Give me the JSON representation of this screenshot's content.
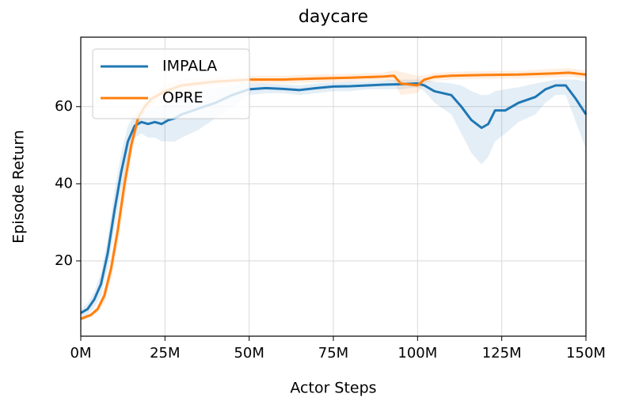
{
  "chart_data": {
    "type": "line",
    "title": "daycare",
    "xlabel": "Actor Steps",
    "ylabel": "Episode Return",
    "xlim": [
      0,
      150
    ],
    "ylim": [
      0.5,
      78
    ],
    "xticks": [
      {
        "value": 0,
        "label": "0M"
      },
      {
        "value": 25,
        "label": "25M"
      },
      {
        "value": 50,
        "label": "50M"
      },
      {
        "value": 75,
        "label": "75M"
      },
      {
        "value": 100,
        "label": "100M"
      },
      {
        "value": 125,
        "label": "125M"
      },
      {
        "value": 150,
        "label": "150M"
      }
    ],
    "yticks": [
      20,
      40,
      60
    ],
    "grid": true,
    "legend": "upper left",
    "series": [
      {
        "name": "IMPALA",
        "color": "#1f77b4",
        "x": [
          0,
          2,
          4,
          6,
          8,
          10,
          12,
          14,
          16,
          18,
          20,
          22,
          24,
          26,
          28,
          30,
          35,
          40,
          45,
          50,
          55,
          60,
          65,
          70,
          75,
          80,
          85,
          90,
          95,
          100,
          102,
          105,
          110,
          113,
          116,
          119,
          121,
          123,
          126,
          130,
          135,
          138,
          141,
          144,
          147,
          150
        ],
        "values": [
          6.5,
          7.5,
          10,
          14,
          22,
          33,
          43,
          51,
          55,
          56,
          55.5,
          56,
          55.5,
          56.5,
          57,
          58,
          59.5,
          61,
          63,
          64.5,
          64.8,
          64.6,
          64.3,
          64.8,
          65.2,
          65.3,
          65.5,
          65.7,
          65.8,
          66,
          65.5,
          64,
          63,
          60,
          56.5,
          54.5,
          55.5,
          59,
          59,
          61,
          62.5,
          64.5,
          65.5,
          65.5,
          62,
          58
        ],
        "lower": [
          5.5,
          6,
          8,
          11,
          18,
          28,
          38,
          47,
          52,
          53,
          52,
          52,
          51,
          51,
          51,
          52,
          54,
          57,
          60,
          63,
          63.5,
          63.5,
          63,
          63.5,
          64,
          64,
          64.5,
          64.5,
          64.5,
          65,
          64,
          61,
          58,
          53,
          48,
          45,
          47,
          51,
          53,
          56,
          58,
          61,
          63,
          63,
          56,
          49
        ],
        "upper": [
          7.5,
          9,
          12,
          17,
          26,
          38,
          48,
          55,
          58,
          59,
          59,
          59.5,
          60,
          61,
          62,
          63,
          64,
          65,
          65.5,
          66,
          66,
          65.8,
          65.5,
          66,
          66.3,
          66.5,
          66.5,
          66.8,
          67,
          67,
          67,
          66.5,
          66,
          65.5,
          64,
          63,
          63,
          64,
          64.5,
          65,
          66,
          66.5,
          67,
          67,
          67,
          66.5
        ]
      },
      {
        "name": "OPRE",
        "color": "#ff7f0e",
        "x": [
          0,
          3,
          5,
          7,
          9,
          11,
          13,
          15,
          17,
          19,
          21,
          25,
          30,
          40,
          50,
          60,
          70,
          80,
          90,
          93,
          95,
          100,
          102,
          105,
          110,
          120,
          130,
          140,
          145,
          150
        ],
        "values": [
          5,
          6,
          7.5,
          11,
          18,
          28,
          40,
          50,
          57,
          60,
          62,
          64,
          65.5,
          66.5,
          67,
          67,
          67.3,
          67.5,
          67.8,
          68,
          66,
          65.5,
          67,
          67.7,
          68,
          68.2,
          68.3,
          68.6,
          68.8,
          68.3
        ],
        "lower": [
          4.5,
          5.5,
          6.5,
          9,
          15,
          24,
          36,
          47,
          55,
          58.5,
          60.5,
          62.5,
          64,
          65.5,
          66,
          66,
          66.3,
          66.5,
          66.8,
          66.5,
          63,
          63.5,
          66,
          66.7,
          67,
          67.2,
          67.3,
          67.6,
          67.8,
          67.3
        ],
        "upper": [
          5.5,
          6.5,
          8.5,
          13,
          21,
          32,
          44,
          53,
          59,
          61.5,
          63.5,
          65.5,
          67,
          67.5,
          68,
          68,
          68.3,
          68.5,
          68.8,
          69.5,
          69,
          68,
          68,
          68.7,
          69,
          69.2,
          69.3,
          69.8,
          70,
          69.3
        ]
      }
    ]
  }
}
